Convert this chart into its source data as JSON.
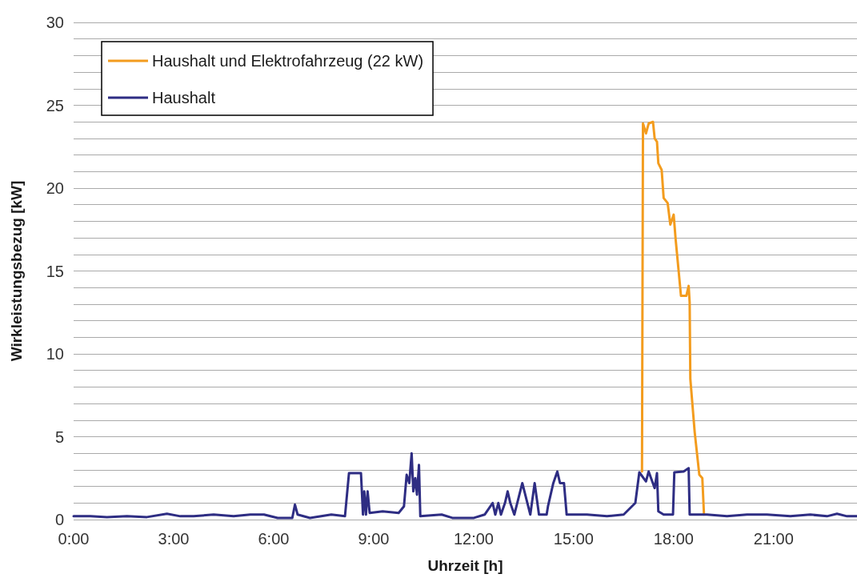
{
  "chart_data": {
    "type": "line",
    "xlabel": "Uhrzeit [h]",
    "ylabel": "Wirkleistungsbezug [kW]",
    "xlim": [
      0,
      23.5
    ],
    "xticks": [
      {
        "value": 0,
        "label": "0:00"
      },
      {
        "value": 3,
        "label": "3:00"
      },
      {
        "value": 6,
        "label": "6:00"
      },
      {
        "value": 9,
        "label": "9:00"
      },
      {
        "value": 12,
        "label": "12:00"
      },
      {
        "value": 15,
        "label": "15:00"
      },
      {
        "value": 18,
        "label": "18:00"
      },
      {
        "value": 21,
        "label": "21:00"
      }
    ],
    "ylim": [
      0,
      30
    ],
    "yticks": [
      0,
      {
        "value": 1,
        "label": null
      },
      {
        "value": 2,
        "label": null
      },
      {
        "value": 3,
        "label": null
      },
      {
        "value": 4,
        "label": null
      },
      5,
      {
        "value": 6,
        "label": null
      },
      {
        "value": 7,
        "label": null
      },
      {
        "value": 8,
        "label": null
      },
      {
        "value": 9,
        "label": null
      },
      10,
      {
        "value": 11,
        "label": null
      },
      {
        "value": 12,
        "label": null
      },
      {
        "value": 13,
        "label": null
      },
      {
        "value": 14,
        "label": null
      },
      15,
      {
        "value": 16,
        "label": null
      },
      {
        "value": 17,
        "label": null
      },
      {
        "value": 18,
        "label": null
      },
      {
        "value": 19,
        "label": null
      },
      20,
      {
        "value": 21,
        "label": null
      },
      {
        "value": 22,
        "label": null
      },
      {
        "value": 23,
        "label": null
      },
      {
        "value": 24,
        "label": null
      },
      25,
      {
        "value": 26,
        "label": null
      },
      {
        "value": 27,
        "label": null
      },
      {
        "value": 28,
        "label": null
      },
      {
        "value": 29,
        "label": null
      },
      30
    ],
    "grid": "y",
    "legend": "top left",
    "marker": "none",
    "line_style": "solid",
    "series": [
      {
        "name": "Haushalt und Elektrofahrzeug (22 kW)",
        "color": "#f39c1e",
        "x": [
          17.05,
          17.08,
          17.17,
          17.25,
          17.38,
          17.43,
          17.5,
          17.54,
          17.64,
          17.7,
          17.82,
          17.9,
          18.0,
          18.06,
          18.22,
          18.38,
          18.45,
          18.48,
          18.5,
          18.63,
          18.77,
          18.86,
          18.91
        ],
        "values": [
          2.9,
          23.9,
          23.3,
          23.9,
          24.0,
          23.0,
          22.8,
          21.5,
          21.1,
          19.4,
          19.1,
          17.8,
          18.4,
          16.9,
          13.5,
          13.5,
          14.1,
          13.1,
          8.5,
          5.3,
          2.7,
          2.5,
          0.3
        ]
      },
      {
        "name": "Haushalt",
        "color": "#2e2d83",
        "x": [
          0,
          0.5,
          1.0,
          1.6,
          2.2,
          2.8,
          3.2,
          3.6,
          4.2,
          4.8,
          5.3,
          5.71,
          6.12,
          6.56,
          6.64,
          6.72,
          7.09,
          7.73,
          8.14,
          8.26,
          8.62,
          8.68,
          8.72,
          8.77,
          8.82,
          8.88,
          9.27,
          9.75,
          9.91,
          9.99,
          10.07,
          10.14,
          10.19,
          10.25,
          10.3,
          10.36,
          10.4,
          11.04,
          11.36,
          12.01,
          12.33,
          12.57,
          12.65,
          12.74,
          12.82,
          12.94,
          13.02,
          13.1,
          13.22,
          13.46,
          13.7,
          13.83,
          13.96,
          14.19,
          14.23,
          14.39,
          14.51,
          14.59,
          14.71,
          14.79,
          15.4,
          16.0,
          16.5,
          16.85,
          16.97,
          17.17,
          17.25,
          17.43,
          17.5,
          17.54,
          17.7,
          17.98,
          18.02,
          18.3,
          18.45,
          18.48,
          19.0,
          19.6,
          20.2,
          20.8,
          21.5,
          22.1,
          22.6,
          22.9,
          23.2,
          23.5
        ],
        "values": [
          0.2,
          0.2,
          0.15,
          0.2,
          0.15,
          0.35,
          0.2,
          0.2,
          0.3,
          0.2,
          0.3,
          0.3,
          0.1,
          0.1,
          0.9,
          0.3,
          0.1,
          0.3,
          0.2,
          2.8,
          2.8,
          0.3,
          1.7,
          0.3,
          1.7,
          0.4,
          0.5,
          0.4,
          0.8,
          2.7,
          2.2,
          4.0,
          1.7,
          2.5,
          1.5,
          3.3,
          0.2,
          0.3,
          0.1,
          0.1,
          0.3,
          1.0,
          0.3,
          1.0,
          0.3,
          1.0,
          1.7,
          1.0,
          0.3,
          2.2,
          0.3,
          2.2,
          0.3,
          0.3,
          0.8,
          2.2,
          2.9,
          2.2,
          2.2,
          0.3,
          0.3,
          0.2,
          0.3,
          1.0,
          2.85,
          2.3,
          2.9,
          1.9,
          2.8,
          0.5,
          0.3,
          0.3,
          2.85,
          2.9,
          3.1,
          0.3,
          0.3,
          0.2,
          0.3,
          0.3,
          0.2,
          0.3,
          0.2,
          0.35,
          0.2,
          0.2
        ]
      }
    ]
  }
}
